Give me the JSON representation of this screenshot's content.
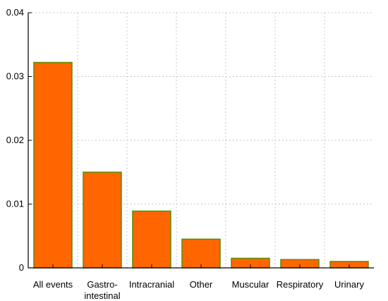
{
  "chart_data": {
    "type": "bar",
    "categories": [
      [
        "All events"
      ],
      [
        "Gastro-",
        "intestinal"
      ],
      [
        "Intracranial"
      ],
      [
        "Other"
      ],
      [
        "Muscular"
      ],
      [
        "Respiratory"
      ],
      [
        "Urinary"
      ]
    ],
    "values": [
      0.0322,
      0.015,
      0.0089,
      0.0045,
      0.0015,
      0.0013,
      0.001
    ],
    "ylim": [
      0,
      0.04
    ],
    "yticks": [
      "0",
      "0.01",
      "0.02",
      "0.03",
      "0.04"
    ],
    "ytick_values": [
      0,
      0.01,
      0.02,
      0.03,
      0.04
    ],
    "grid": true,
    "bar_fill": "#ff6600",
    "bar_stroke": "#5a8a00",
    "title": "",
    "xlabel": "",
    "ylabel": ""
  }
}
